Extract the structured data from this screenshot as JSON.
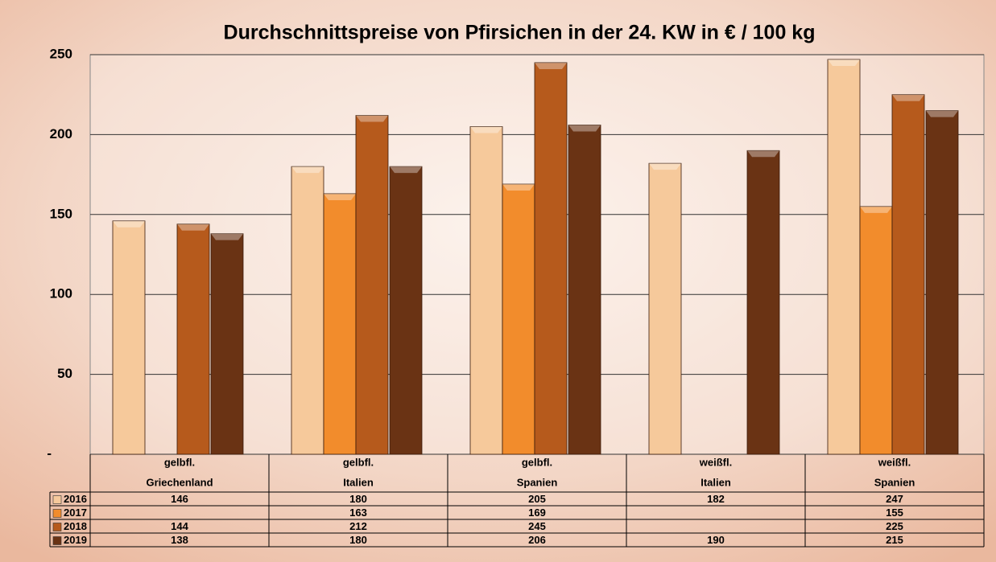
{
  "chart_data": {
    "type": "bar",
    "title": "Durchschnittspreise von Pfirsichen in der 24. KW in € / 100 kg",
    "categories": [
      [
        "gelbfl.",
        "Griechenland"
      ],
      [
        "gelbfl.",
        "Italien"
      ],
      [
        "gelbfl.",
        "Spanien"
      ],
      [
        "weißfl.",
        "Italien"
      ],
      [
        "weißfl.",
        "Spanien"
      ]
    ],
    "series": [
      {
        "name": "2016",
        "color": "#f6c99b",
        "values": [
          146,
          180,
          205,
          182,
          247
        ]
      },
      {
        "name": "2017",
        "color": "#f28c2c",
        "values": [
          null,
          163,
          169,
          null,
          155
        ]
      },
      {
        "name": "2018",
        "color": "#b65a1c",
        "values": [
          144,
          212,
          245,
          null,
          225
        ]
      },
      {
        "name": "2019",
        "color": "#6a3314",
        "values": [
          138,
          180,
          206,
          190,
          215
        ]
      }
    ],
    "ylim": [
      0,
      250
    ],
    "yticks": [
      {
        "value": 0,
        "label": "-"
      },
      50,
      100,
      150,
      200,
      250
    ],
    "grid": true
  }
}
